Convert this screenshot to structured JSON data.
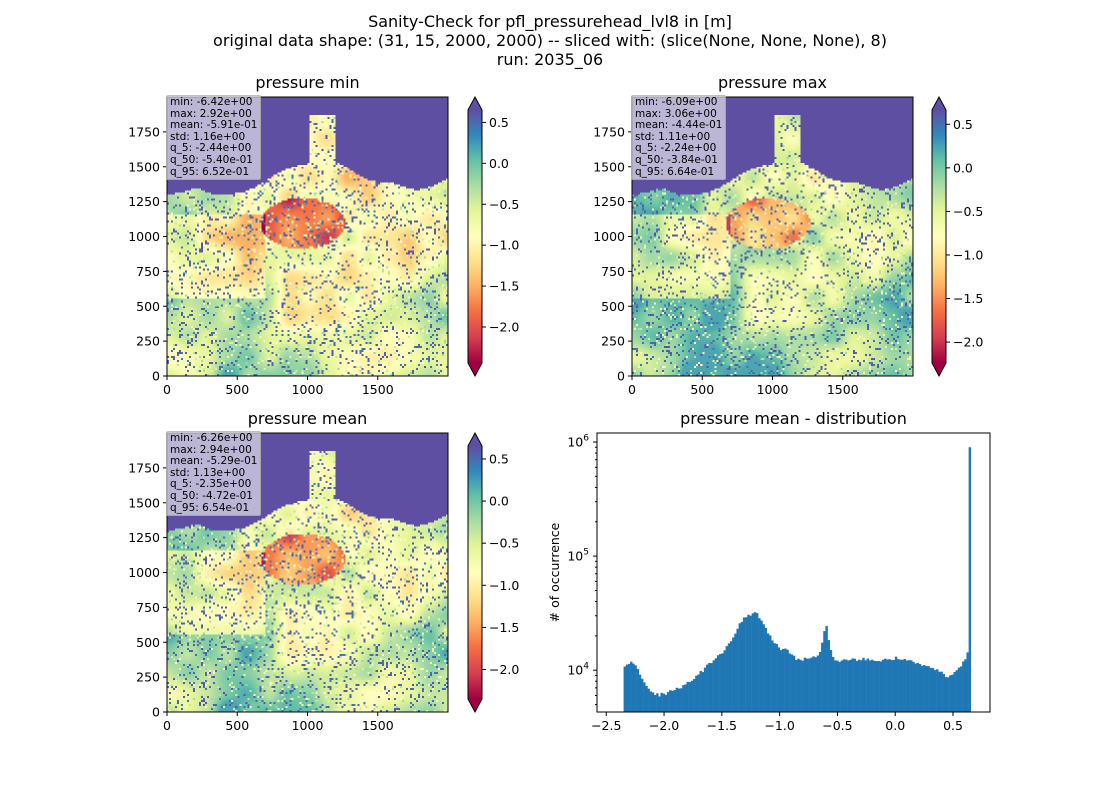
{
  "suptitle": {
    "line1": "Sanity-Check for pfl_pressurehead_lvl8 in [m]",
    "line2": "original data shape: (31, 15, 2000, 2000) -- sliced with: (slice(None, None, None), 8)",
    "line3": "run: 2035_06"
  },
  "colors": {
    "colormap": "Spectral",
    "ocean": "#5e4fa2",
    "hist_bar": "#1f77b4"
  },
  "chart_data": [
    {
      "type": "heatmap",
      "id": "min",
      "title": "pressure min",
      "xlim": [
        0,
        2000
      ],
      "ylim": [
        0,
        2000
      ],
      "xticks": [
        0,
        500,
        1000,
        1500
      ],
      "yticks": [
        0,
        250,
        500,
        750,
        1000,
        1250,
        1500,
        1750
      ],
      "colorbar": {
        "range": [
          -2.44,
          0.652
        ],
        "ticks": [
          0.5,
          0.0,
          -0.5,
          -1.0,
          -1.5,
          -2.0
        ],
        "tick_labels": [
          "0.5",
          "0.0",
          "−0.5",
          "−1.0",
          "−1.5",
          "−2.0"
        ],
        "extend": "both"
      },
      "stats": [
        "min: -6.42e+00",
        "max: 2.92e+00",
        "mean: -5.91e-01",
        "std: 1.16e+00",
        "q_5: -2.44e+00",
        "q_50: -5.40e-01",
        "q_95: 6.52e-01"
      ]
    },
    {
      "type": "heatmap",
      "id": "max",
      "title": "pressure max",
      "xlim": [
        0,
        2000
      ],
      "ylim": [
        0,
        2000
      ],
      "xticks": [
        0,
        500,
        1000,
        1500
      ],
      "yticks": [
        0,
        250,
        500,
        750,
        1000,
        1250,
        1500,
        1750
      ],
      "colorbar": {
        "range": [
          -2.24,
          0.664
        ],
        "ticks": [
          0.5,
          0.0,
          -0.5,
          -1.0,
          -1.5,
          -2.0
        ],
        "tick_labels": [
          "0.5",
          "0.0",
          "−0.5",
          "−1.0",
          "−1.5",
          "−2.0"
        ],
        "extend": "both"
      },
      "stats": [
        "min: -6.09e+00",
        "max: 3.06e+00",
        "mean: -4.44e-01",
        "std: 1.11e+00",
        "q_5: -2.24e+00",
        "q_50: -3.84e-01",
        "q_95: 6.64e-01"
      ]
    },
    {
      "type": "heatmap",
      "id": "mean",
      "title": "pressure mean",
      "xlim": [
        0,
        2000
      ],
      "ylim": [
        0,
        2000
      ],
      "xticks": [
        0,
        500,
        1000,
        1500
      ],
      "yticks": [
        0,
        250,
        500,
        750,
        1000,
        1250,
        1500,
        1750
      ],
      "colorbar": {
        "range": [
          -2.35,
          0.654
        ],
        "ticks": [
          0.5,
          0.0,
          -0.5,
          -1.0,
          -1.5,
          -2.0
        ],
        "tick_labels": [
          "0.5",
          "0.0",
          "−0.5",
          "−1.0",
          "−1.5",
          "−2.0"
        ],
        "extend": "both"
      },
      "stats": [
        "min: -6.26e+00",
        "max: 2.94e+00",
        "mean: -5.29e-01",
        "std: 1.13e+00",
        "q_5: -2.35e+00",
        "q_50: -4.72e-01",
        "q_95: 6.54e-01"
      ]
    },
    {
      "type": "bar",
      "id": "hist",
      "title": "pressure mean - distribution",
      "ylabel": "# of occurrence",
      "yscale": "log",
      "xlim": [
        -2.58,
        0.82
      ],
      "ylim": [
        4300,
        1200000
      ],
      "xticks": [
        -2.5,
        -2.0,
        -1.5,
        -1.0,
        -0.5,
        0.0,
        0.5
      ],
      "xtick_labels": [
        "−2.5",
        "−2.0",
        "−1.5",
        "−1.0",
        "−0.5",
        "0.0",
        "0.5"
      ],
      "yticks": [
        10000,
        100000,
        1000000
      ],
      "ytick_labels": [
        {
          "base": "10",
          "exp": "4"
        },
        {
          "base": "10",
          "exp": "5"
        },
        {
          "base": "10",
          "exp": "6"
        }
      ],
      "bin_start": -2.35,
      "bin_end": 0.654,
      "curve_x": [
        -2.35,
        -2.3,
        -2.25,
        -2.22,
        -2.18,
        -2.12,
        -2.05,
        -2.0,
        -1.9,
        -1.8,
        -1.7,
        -1.6,
        -1.5,
        -1.42,
        -1.35,
        -1.3,
        -1.25,
        -1.2,
        -1.15,
        -1.1,
        -1.05,
        -1.0,
        -0.95,
        -0.9,
        -0.85,
        -0.8,
        -0.75,
        -0.7,
        -0.65,
        -0.62,
        -0.6,
        -0.58,
        -0.55,
        -0.5,
        -0.4,
        -0.3,
        -0.2,
        -0.1,
        0.0,
        0.1,
        0.2,
        0.3,
        0.4,
        0.45,
        0.5,
        0.55,
        0.6,
        0.63,
        0.645,
        0.654
      ],
      "curve_y": [
        11000,
        11800,
        11500,
        10000,
        8000,
        6600,
        6000,
        6200,
        6800,
        7600,
        9200,
        11500,
        14000,
        18000,
        25000,
        29000,
        30000,
        33000,
        26000,
        21000,
        18000,
        15000,
        15500,
        13500,
        12500,
        12500,
        12500,
        13000,
        14000,
        20000,
        26000,
        19000,
        13500,
        12000,
        12300,
        12500,
        12300,
        12200,
        12800,
        12300,
        11500,
        10500,
        9500,
        8800,
        9500,
        10500,
        12000,
        15000,
        60000,
        900000
      ]
    }
  ]
}
